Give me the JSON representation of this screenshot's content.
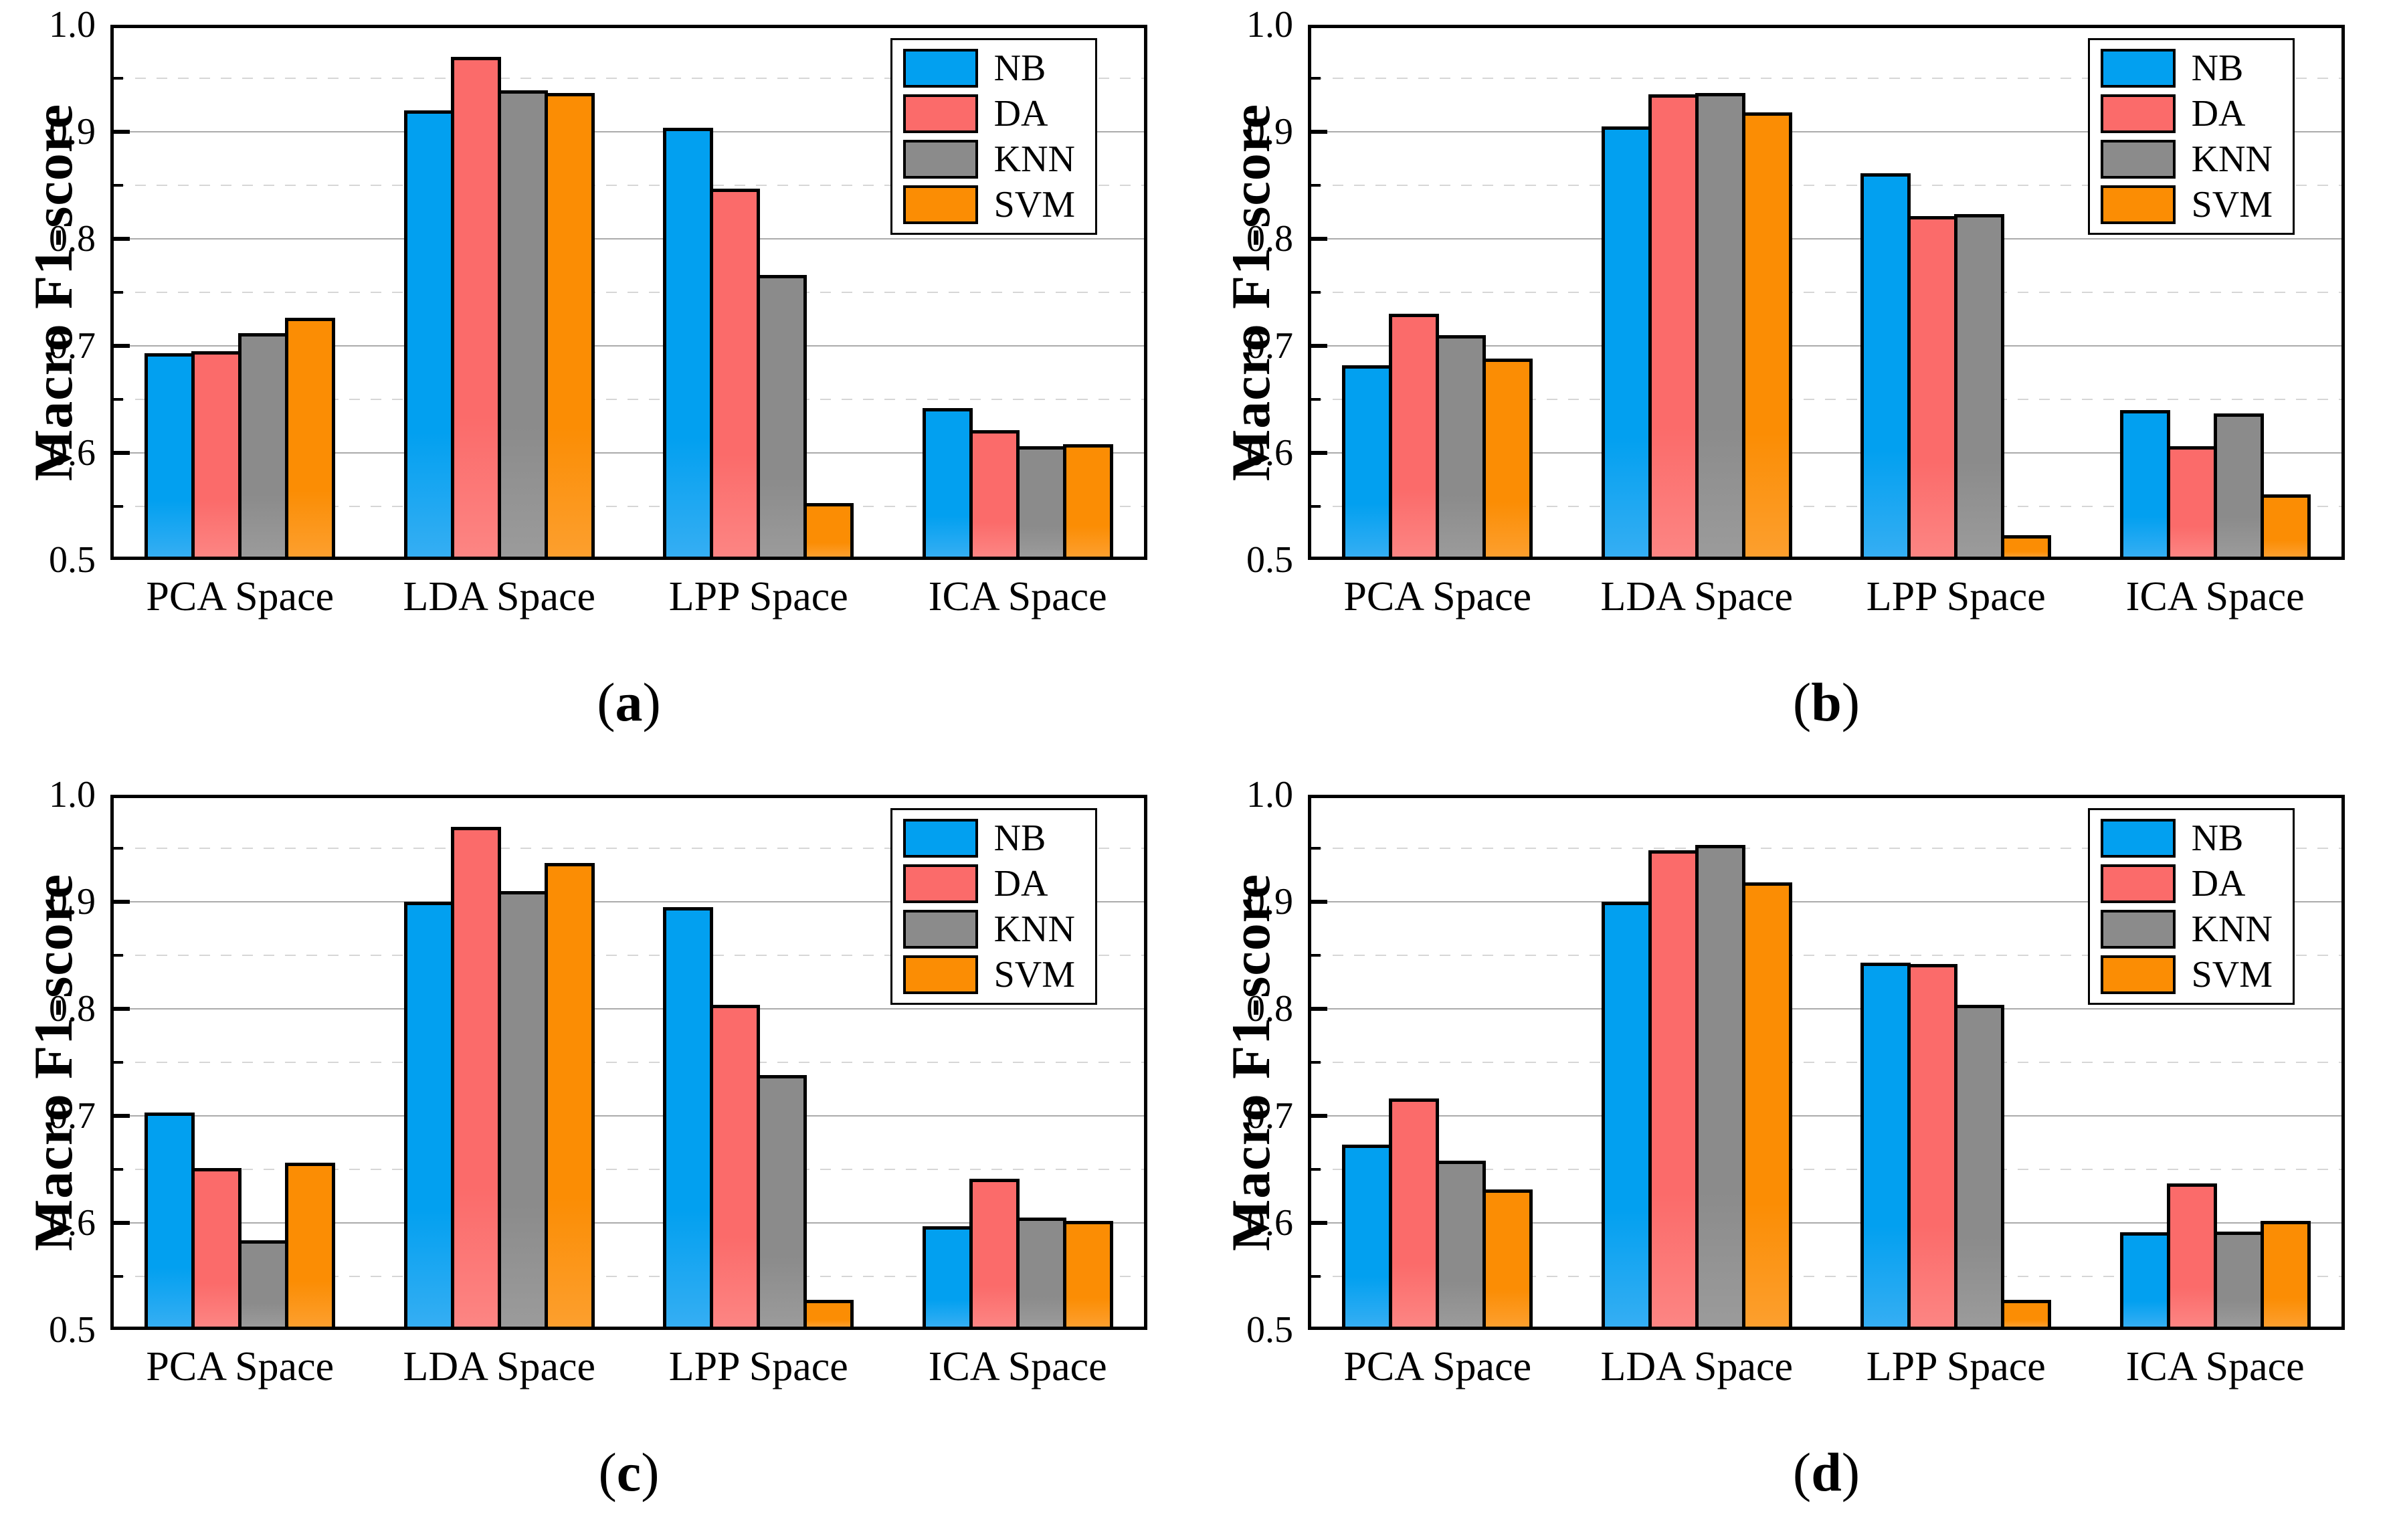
{
  "figure": {
    "background": "#ffffff",
    "frame_color": "#000000",
    "grid_major_color": "#ababab",
    "grid_minor_color": "#d6d6d6",
    "paren_open": "(",
    "paren_close": ")"
  },
  "legend": {
    "entries": [
      "NB",
      "DA",
      "KNN",
      "SVM"
    ],
    "position": "top-right"
  },
  "series_colors": {
    "NB": "#02a0f0",
    "DA": "#fb6b6a",
    "KNN": "#8b8b8b",
    "SVM": "#fb8d04"
  },
  "chart_data": [
    {
      "type": "bar",
      "panel": "a",
      "caption": "a",
      "ylabel": "Macro F1-score",
      "categories": [
        "PCA Space",
        "LDA Space",
        "LPP Space",
        "ICA Space"
      ],
      "ylim": [
        0.5,
        1.0
      ],
      "ytick_labels": [
        "1.0",
        "0.9",
        "0.8",
        "0.7",
        "0.6",
        "0.5"
      ],
      "grid": "major-solid-minor-dashed",
      "legend_position": "top-right",
      "series": [
        {
          "name": "NB",
          "color": "#02a0f0",
          "color2": "#35aef3",
          "values": [
            0.693,
            0.92,
            0.904,
            0.642
          ]
        },
        {
          "name": "DA",
          "color": "#fb6b6a",
          "color2": "#fc8583",
          "values": [
            0.695,
            0.97,
            0.847,
            0.621
          ]
        },
        {
          "name": "KNN",
          "color": "#8b8b8b",
          "color2": "#9b9b9b",
          "values": [
            0.712,
            0.939,
            0.766,
            0.606
          ]
        },
        {
          "name": "SVM",
          "color": "#fb8d04",
          "color2": "#fc9f2e",
          "values": [
            0.726,
            0.936,
            0.553,
            0.608
          ]
        }
      ]
    },
    {
      "type": "bar",
      "panel": "b",
      "caption": "b",
      "ylabel": "Macro F1-score",
      "categories": [
        "PCA Space",
        "LDA Space",
        "LPP Space",
        "ICA Space"
      ],
      "ylim": [
        0.5,
        1.0
      ],
      "ytick_labels": [
        "1.0",
        "0.9",
        "0.8",
        "0.7",
        "0.6",
        "0.5"
      ],
      "grid": "major-solid-minor-dashed",
      "legend_position": "top-right",
      "series": [
        {
          "name": "NB",
          "color": "#02a0f0",
          "color2": "#35aef3",
          "values": [
            0.682,
            0.905,
            0.861,
            0.64
          ]
        },
        {
          "name": "DA",
          "color": "#fb6b6a",
          "color2": "#fc8583",
          "values": [
            0.73,
            0.935,
            0.821,
            0.606
          ]
        },
        {
          "name": "KNN",
          "color": "#8b8b8b",
          "color2": "#9b9b9b",
          "values": [
            0.71,
            0.936,
            0.823,
            0.637
          ]
        },
        {
          "name": "SVM",
          "color": "#fb8d04",
          "color2": "#fc9f2e",
          "values": [
            0.688,
            0.918,
            0.523,
            0.561
          ]
        }
      ]
    },
    {
      "type": "bar",
      "panel": "c",
      "caption": "c",
      "ylabel": "Macro F1-score",
      "categories": [
        "PCA Space",
        "LDA Space",
        "LPP Space",
        "ICA Space"
      ],
      "ylim": [
        0.5,
        1.0
      ],
      "ytick_labels": [
        "1.0",
        "0.9",
        "0.8",
        "0.7",
        "0.6",
        "0.5"
      ],
      "grid": "major-solid-minor-dashed",
      "legend_position": "top-right",
      "series": [
        {
          "name": "NB",
          "color": "#02a0f0",
          "color2": "#35aef3",
          "values": [
            0.703,
            0.9,
            0.895,
            0.597
          ]
        },
        {
          "name": "DA",
          "color": "#fb6b6a",
          "color2": "#fc8583",
          "values": [
            0.651,
            0.97,
            0.804,
            0.641
          ]
        },
        {
          "name": "KNN",
          "color": "#8b8b8b",
          "color2": "#9b9b9b",
          "values": [
            0.584,
            0.91,
            0.738,
            0.605
          ]
        },
        {
          "name": "SVM",
          "color": "#fb8d04",
          "color2": "#fc9f2e",
          "values": [
            0.656,
            0.936,
            0.528,
            0.602
          ]
        }
      ]
    },
    {
      "type": "bar",
      "panel": "d",
      "caption": "d",
      "ylabel": "Macro F1-score",
      "categories": [
        "PCA Space",
        "LDA Space",
        "LPP Space",
        "ICA Space"
      ],
      "ylim": [
        0.5,
        1.0
      ],
      "ytick_labels": [
        "1.0",
        "0.9",
        "0.8",
        "0.7",
        "0.6",
        "0.5"
      ],
      "grid": "major-solid-minor-dashed",
      "legend_position": "top-right",
      "series": [
        {
          "name": "NB",
          "color": "#02a0f0",
          "color2": "#35aef3",
          "values": [
            0.673,
            0.9,
            0.843,
            0.591
          ]
        },
        {
          "name": "DA",
          "color": "#fb6b6a",
          "color2": "#fc8583",
          "values": [
            0.716,
            0.948,
            0.842,
            0.637
          ]
        },
        {
          "name": "KNN",
          "color": "#8b8b8b",
          "color2": "#9b9b9b",
          "values": [
            0.658,
            0.953,
            0.804,
            0.592
          ]
        },
        {
          "name": "SVM",
          "color": "#fb8d04",
          "color2": "#fc9f2e",
          "values": [
            0.631,
            0.918,
            0.528,
            0.602
          ]
        }
      ]
    }
  ]
}
